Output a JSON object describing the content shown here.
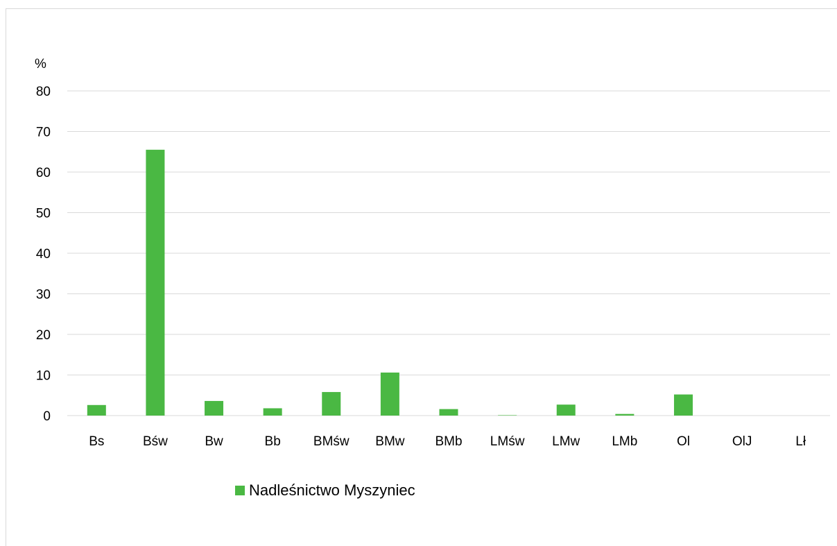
{
  "chart_data": {
    "type": "bar",
    "ylabel": "%",
    "ylim": [
      0,
      80
    ],
    "yticks": [
      0,
      10,
      20,
      30,
      40,
      50,
      60,
      70,
      80
    ],
    "grid": true,
    "legend_position": "bottom",
    "categories": [
      "Bs",
      "Bśw",
      "Bw",
      "Bb",
      "BMśw",
      "BMw",
      "BMb",
      "LMśw",
      "LMw",
      "LMb",
      "Ol",
      "OlJ",
      "Lł"
    ],
    "series": [
      {
        "name": "Nadleśnictwo Myszyniec",
        "color": "#4ab843",
        "values": [
          2.6,
          65.5,
          3.6,
          1.8,
          5.8,
          10.6,
          1.6,
          0.1,
          2.7,
          0.4,
          5.2,
          0,
          0
        ]
      }
    ]
  },
  "gridline_color": "#d9d9d9"
}
